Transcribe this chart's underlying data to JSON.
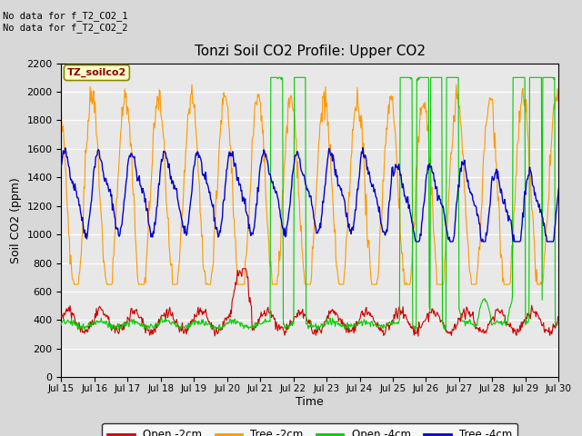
{
  "title": "Tonzi Soil CO2 Profile: Upper CO2",
  "xlabel": "Time",
  "ylabel": "Soil CO2 (ppm)",
  "ylim": [
    0,
    2200
  ],
  "yticks": [
    0,
    200,
    400,
    600,
    800,
    1000,
    1200,
    1400,
    1600,
    1800,
    2000,
    2200
  ],
  "no_data_text": [
    "No data for f_T2_CO2_1",
    "No data for f_T2_CO2_2"
  ],
  "legend_label_box": "TZ_soilco2",
  "line_colors": {
    "open2": "#cc0000",
    "tree2": "#ff9900",
    "open4": "#00cc00",
    "tree4": "#0000cc"
  },
  "legend_colors": {
    "Open -2cm": "#cc0000",
    "Tree -2cm": "#ff9900",
    "Open -4cm": "#00cc00",
    "Tree -4cm": "#0000cc"
  }
}
